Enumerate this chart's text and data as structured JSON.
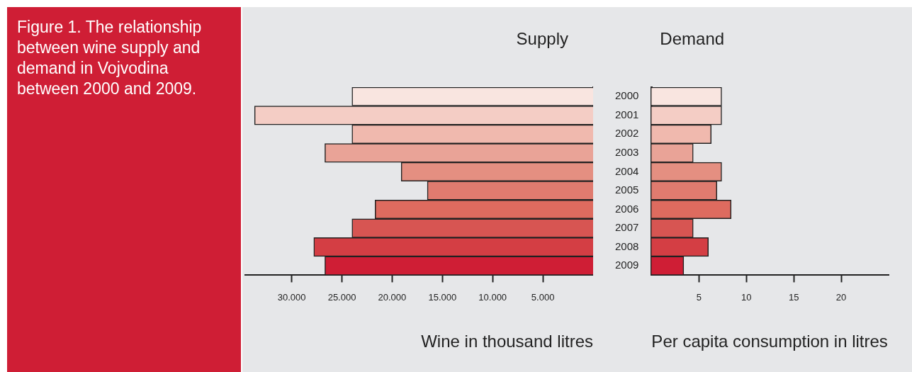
{
  "chart_data": [
    {
      "type": "bar",
      "orientation": "horizontal",
      "title": "Supply",
      "xlabel": "Wine in thousand litres",
      "annotations": [
        "Figure 1. The relationship between wine supply and demand in Vojvodina between 2000 and 2009."
      ],
      "categories": [
        "2000",
        "2001",
        "2002",
        "2003",
        "2004",
        "2005",
        "2006",
        "2007",
        "2008",
        "2009"
      ],
      "values": [
        24000,
        33700,
        24000,
        26700,
        19100,
        16500,
        21700,
        24000,
        27800,
        26700
      ],
      "colors": [
        "#f9e5e0",
        "#f4cdc5",
        "#f0b9ae",
        "#e9a397",
        "#e48f81",
        "#e07b6f",
        "#de6b5f",
        "#d75552",
        "#d43e44",
        "#cf1e35"
      ],
      "xlim": [
        34700,
        0
      ],
      "xticks": [
        {
          "value": 30000,
          "label": "30.000"
        },
        {
          "value": 25000,
          "label": "25.000"
        },
        {
          "value": 20000,
          "label": "20.000"
        },
        {
          "value": 15000,
          "label": "15.000"
        },
        {
          "value": 10000,
          "label": "10.000"
        },
        {
          "value": 5000,
          "label": "5.000"
        }
      ],
      "grid": false,
      "tick_labels": "x"
    },
    {
      "type": "bar",
      "orientation": "horizontal",
      "title": "Demand",
      "xlabel": "Per capita consumption in litres",
      "categories": [
        "2000",
        "2001",
        "2002",
        "2003",
        "2004",
        "2005",
        "2006",
        "2007",
        "2008",
        "2009"
      ],
      "values": [
        7.4,
        7.4,
        6.3,
        4.4,
        7.4,
        6.9,
        8.4,
        4.4,
        6.0,
        3.4
      ],
      "colors": [
        "#f9e5e0",
        "#f4cdc5",
        "#f0b9ae",
        "#e9a397",
        "#e48f81",
        "#e07b6f",
        "#de6b5f",
        "#d75552",
        "#d43e44",
        "#cf1e35"
      ],
      "xlim": [
        0,
        25
      ],
      "xticks": [
        5,
        10,
        15,
        20
      ],
      "grid": false
    }
  ]
}
